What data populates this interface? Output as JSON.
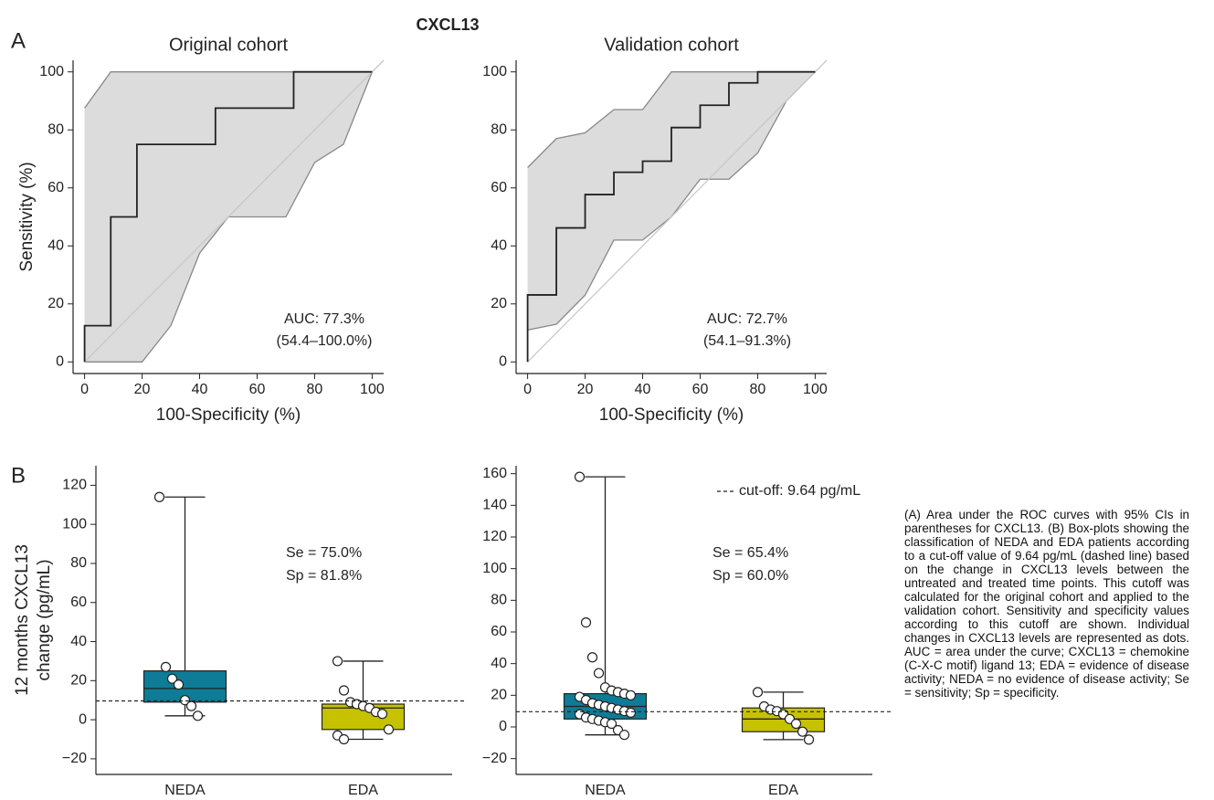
{
  "title": "CXCL13",
  "panel_labels": [
    "A",
    "B"
  ],
  "caption": "(A) Area under the ROC curves with 95% CIs in parentheses for CXCL13. (B) Box-plots showing the classification of NEDA and EDA patients according to a cut-off value of 9.64 pg/mL (dashed line) based on the change in CXCL13 levels between the untreated and treated time points. This cutoff was calculated for the original cohort and applied to the validation cohort. Sensitivity and specificity values according to this cutoff are shown. Individual changes in CXCL13 levels are represented as dots. AUC = area under the curve; CXCL13 = chemokine (C-X-C motif) ligand 13; EDA = evidence of disease activity; NEDA = no evidence of disease activity; Se = sensitivity; Sp = specificity.",
  "chart_data": [
    {
      "type": "roc",
      "title": "Original cohort",
      "xlabel": "100-Specificity (%)",
      "ylabel": "Sensitivity (%)",
      "xlim": [
        -4,
        104
      ],
      "ylim": [
        -4,
        104
      ],
      "xticks": [
        0,
        20,
        40,
        60,
        80,
        100
      ],
      "yticks": [
        0,
        20,
        40,
        60,
        80,
        100
      ],
      "diagonal": true,
      "color": "#222222",
      "ci_color": "#dcdcdc",
      "curve": {
        "x": [
          0,
          0,
          9.1,
          9.1,
          18.2,
          18.2,
          45.5,
          45.5,
          72.7,
          72.7,
          100
        ],
        "y": [
          0,
          12.5,
          12.5,
          50,
          50,
          75,
          75,
          87.5,
          87.5,
          100,
          100
        ]
      },
      "ci": {
        "upper": {
          "x": [
            0,
            9.1,
            100
          ],
          "y": [
            87.5,
            100,
            100
          ]
        },
        "lower": {
          "x": [
            0,
            20,
            30,
            40,
            50,
            70,
            80,
            90,
            100
          ],
          "y": [
            0,
            0,
            12.5,
            37.5,
            50,
            50,
            68.75,
            75,
            100
          ]
        }
      },
      "annotations": [
        "AUC: 77.3%",
        "(54.4–100.0%)"
      ]
    },
    {
      "type": "roc",
      "title": "Validation cohort",
      "xlabel": "100-Specificity (%)",
      "xlim": [
        -4,
        104
      ],
      "ylim": [
        -4,
        104
      ],
      "xticks": [
        0,
        20,
        40,
        60,
        80,
        100
      ],
      "yticks": [
        0,
        20,
        40,
        60,
        80,
        100
      ],
      "diagonal": true,
      "color": "#222222",
      "ci_color": "#dcdcdc",
      "curve": {
        "x": [
          0,
          0,
          10,
          10,
          20,
          20,
          30,
          30,
          40,
          40,
          50,
          50,
          60,
          60,
          70,
          70,
          80,
          80,
          100
        ],
        "y": [
          0,
          23.1,
          23.1,
          46.2,
          46.2,
          57.7,
          57.7,
          65.4,
          65.4,
          69.2,
          69.2,
          80.8,
          80.8,
          88.5,
          88.5,
          96.2,
          96.2,
          100,
          100
        ]
      },
      "ci": {
        "upper": {
          "x": [
            0,
            10,
            20,
            30,
            40,
            50,
            100
          ],
          "y": [
            67,
            77,
            79,
            87,
            87,
            100,
            100
          ]
        },
        "lower": {
          "x": [
            0,
            10,
            20,
            30,
            40,
            50,
            60,
            70,
            80,
            90,
            100
          ],
          "y": [
            11,
            13,
            23,
            42,
            42,
            50,
            63,
            63,
            72,
            90,
            100
          ]
        }
      },
      "annotations": [
        "AUC: 72.7%",
        "(54.1–91.3%)"
      ]
    },
    {
      "type": "box",
      "ylabel": [
        "12 months CXCL13",
        "change (pg/mL)"
      ],
      "categories": [
        "NEDA",
        "EDA"
      ],
      "ylim": [
        -28,
        130
      ],
      "yticks": [
        {
          "value": -20,
          "label": "−20"
        },
        0,
        20,
        40,
        60,
        80,
        100,
        120
      ],
      "cutoff": 9.64,
      "boxes": [
        {
          "color": "#0e7c96",
          "whislo": 2,
          "q1": 9,
          "med": 16,
          "q3": 25,
          "whishi": 114,
          "points": [
            114,
            27,
            21,
            18,
            10,
            7,
            2
          ]
        },
        {
          "color": "#c6c200",
          "whislo": -10,
          "q1": -5,
          "med": 6,
          "q3": 8,
          "whishi": 30,
          "points": [
            30,
            15,
            9,
            8,
            7,
            6,
            4,
            3,
            -5,
            -8,
            -10
          ]
        }
      ],
      "annotations": [
        "Se = 75.0%",
        "Sp = 81.8%"
      ]
    },
    {
      "type": "box",
      "categories": [
        "NEDA",
        "EDA"
      ],
      "ylim": [
        -30,
        165
      ],
      "yticks": [
        {
          "value": -20,
          "label": "−20"
        },
        0,
        20,
        40,
        60,
        80,
        100,
        120,
        140,
        160
      ],
      "cutoff": 9.64,
      "cutoff_label": "cut-off: 9.64 pg/mL",
      "boxes": [
        {
          "color": "#0e7c96",
          "whislo": -5,
          "q1": 5,
          "med": 13,
          "q3": 21,
          "whishi": 158,
          "points": [
            158,
            66,
            44,
            34,
            25,
            23,
            22,
            21,
            20,
            19,
            17,
            15,
            14,
            13,
            12,
            11,
            10,
            9,
            8,
            6,
            5,
            4,
            3,
            2,
            -2,
            -5
          ]
        },
        {
          "color": "#c6c200",
          "whislo": -8,
          "q1": -3,
          "med": 5,
          "q3": 12,
          "whishi": 22,
          "points": [
            22,
            13,
            11,
            10,
            8,
            5,
            2,
            -3,
            -8
          ]
        }
      ],
      "annotations": [
        "Se = 65.4%",
        "Sp = 60.0%"
      ]
    }
  ]
}
